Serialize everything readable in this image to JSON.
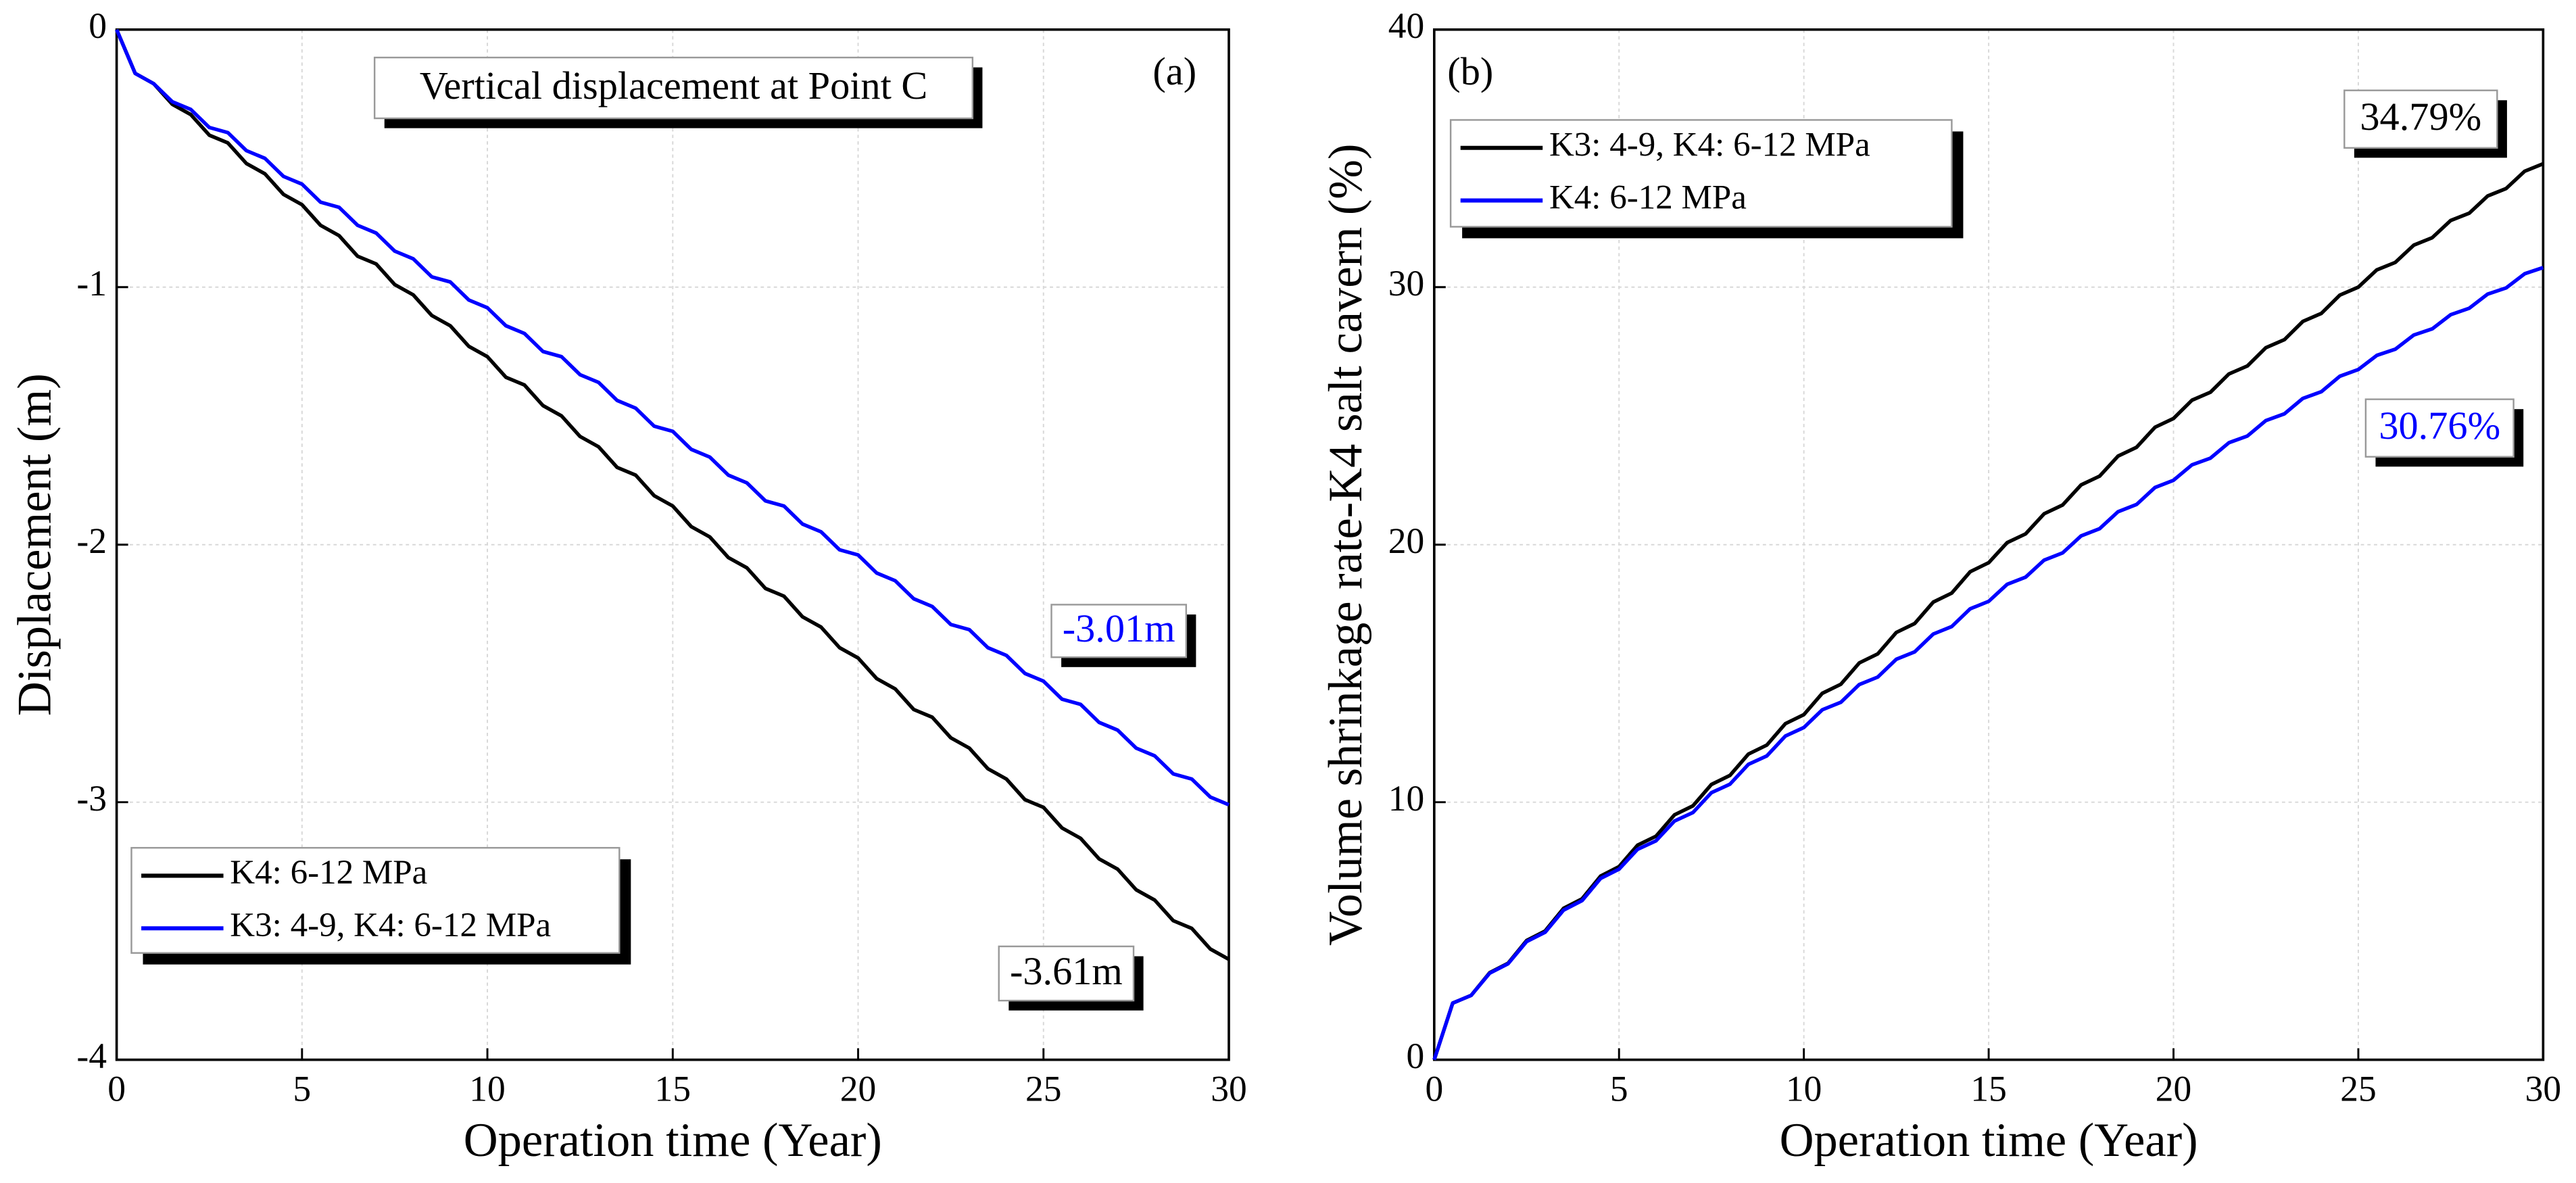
{
  "chart_data": [
    {
      "type": "line",
      "xlabel": "Operation time (Year)",
      "ylabel": "Displacement (m)",
      "x": [
        0,
        0.5,
        1,
        1.5,
        2,
        2.5,
        3,
        3.5,
        4,
        4.5,
        5,
        5.5,
        6,
        6.5,
        7,
        7.5,
        8,
        8.5,
        9,
        9.5,
        10,
        10.5,
        11,
        11.5,
        12,
        12.5,
        13,
        13.5,
        14,
        14.5,
        15,
        15.5,
        16,
        16.5,
        17,
        17.5,
        18,
        18.5,
        19,
        19.5,
        20,
        20.5,
        21,
        21.5,
        22,
        22.5,
        23,
        23.5,
        24,
        24.5,
        25,
        25.5,
        26,
        26.5,
        27,
        27.5,
        28,
        28.5,
        29,
        29.5,
        30
      ],
      "series": [
        {
          "name": "K4: 6-12 MPa",
          "color": "#000000",
          "values": [
            0,
            -0.17,
            -0.21,
            -0.29,
            -0.33,
            -0.41,
            -0.44,
            -0.52,
            -0.56,
            -0.64,
            -0.68,
            -0.76,
            -0.8,
            -0.88,
            -0.91,
            -0.99,
            -1.03,
            -1.11,
            -1.15,
            -1.23,
            -1.27,
            -1.35,
            -1.38,
            -1.46,
            -1.5,
            -1.58,
            -1.62,
            -1.7,
            -1.73,
            -1.81,
            -1.85,
            -1.93,
            -1.97,
            -2.05,
            -2.09,
            -2.17,
            -2.2,
            -2.28,
            -2.32,
            -2.4,
            -2.44,
            -2.52,
            -2.56,
            -2.64,
            -2.67,
            -2.75,
            -2.79,
            -2.87,
            -2.91,
            -2.99,
            -3.02,
            -3.1,
            -3.14,
            -3.22,
            -3.26,
            -3.34,
            -3.38,
            -3.46,
            -3.49,
            -3.57,
            -3.61
          ]
        },
        {
          "name": "K3: 4-9, K4: 6-12 MPa",
          "color": "#0000ff",
          "values": [
            0,
            -0.17,
            -0.21,
            -0.28,
            -0.31,
            -0.38,
            -0.4,
            -0.47,
            -0.5,
            -0.57,
            -0.6,
            -0.67,
            -0.69,
            -0.76,
            -0.79,
            -0.86,
            -0.89,
            -0.96,
            -0.98,
            -1.05,
            -1.08,
            -1.15,
            -1.18,
            -1.25,
            -1.27,
            -1.34,
            -1.37,
            -1.44,
            -1.47,
            -1.54,
            -1.56,
            -1.63,
            -1.66,
            -1.73,
            -1.76,
            -1.83,
            -1.85,
            -1.92,
            -1.95,
            -2.02,
            -2.04,
            -2.11,
            -2.14,
            -2.21,
            -2.24,
            -2.31,
            -2.33,
            -2.4,
            -2.43,
            -2.5,
            -2.53,
            -2.6,
            -2.62,
            -2.69,
            -2.72,
            -2.79,
            -2.82,
            -2.89,
            -2.91,
            -2.98,
            -3.01
          ]
        }
      ],
      "xlim": [
        0,
        30
      ],
      "xticks": [
        0,
        5,
        10,
        15,
        20,
        25,
        30
      ],
      "ylim": [
        -4,
        0
      ],
      "yticks": [
        -4,
        -3,
        -2,
        -1,
        0
      ],
      "grid": true,
      "legend": "lower left",
      "annotations": [
        {
          "text": "Vertical displacement at Point C",
          "color": "#000000"
        },
        {
          "text": "(a)",
          "color": "#000000"
        },
        {
          "text": "-3.01m",
          "color": "#0000ff"
        },
        {
          "text": "-3.61m",
          "color": "#000000"
        }
      ]
    },
    {
      "type": "line",
      "xlabel": "Operation time (Year)",
      "ylabel": "Volume shrinkage rate-K4 salt cavern (%)",
      "x": [
        0,
        0.5,
        1,
        1.5,
        2,
        2.5,
        3,
        3.5,
        4,
        4.5,
        5,
        5.5,
        6,
        6.5,
        7,
        7.5,
        8,
        8.5,
        9,
        9.5,
        10,
        10.5,
        11,
        11.5,
        12,
        12.5,
        13,
        13.5,
        14,
        14.5,
        15,
        15.5,
        16,
        16.5,
        17,
        17.5,
        18,
        18.5,
        19,
        19.5,
        20,
        20.5,
        21,
        21.5,
        22,
        22.5,
        23,
        23.5,
        24,
        24.5,
        25,
        25.5,
        26,
        26.5,
        27,
        27.5,
        28,
        28.5,
        29,
        29.5,
        30
      ],
      "series": [
        {
          "name": "K3: 4-9, K4: 6-12 MPa",
          "color": "#000000",
          "values": [
            0,
            2.2,
            2.5,
            3.38,
            3.75,
            4.63,
            5.0,
            5.88,
            6.25,
            7.13,
            7.5,
            8.33,
            8.68,
            9.51,
            9.86,
            10.69,
            11.04,
            11.87,
            12.22,
            13.05,
            13.4,
            14.23,
            14.58,
            15.41,
            15.76,
            16.59,
            16.94,
            17.77,
            18.12,
            18.95,
            19.3,
            20.08,
            20.42,
            21.2,
            21.54,
            22.32,
            22.66,
            23.44,
            23.78,
            24.56,
            24.9,
            25.61,
            25.92,
            26.63,
            26.94,
            27.65,
            27.96,
            28.67,
            28.98,
            29.69,
            30.0,
            30.67,
            30.96,
            31.63,
            31.92,
            32.59,
            32.87,
            33.54,
            33.83,
            34.5,
            34.79
          ]
        },
        {
          "name": "K4: 6-12 MPa",
          "color": "#0000ff",
          "values": [
            0,
            2.2,
            2.5,
            3.36,
            3.73,
            4.59,
            4.95,
            5.81,
            6.18,
            7.04,
            7.4,
            8.17,
            8.5,
            9.27,
            9.6,
            10.37,
            10.7,
            11.47,
            11.8,
            12.57,
            12.9,
            13.59,
            13.88,
            14.57,
            14.86,
            15.55,
            15.84,
            16.53,
            16.82,
            17.51,
            17.8,
            18.46,
            18.74,
            19.4,
            19.68,
            20.34,
            20.62,
            21.28,
            21.56,
            22.22,
            22.5,
            23.1,
            23.36,
            23.96,
            24.22,
            24.82,
            25.08,
            25.68,
            25.94,
            26.54,
            26.8,
            27.35,
            27.59,
            28.14,
            28.38,
            28.93,
            29.18,
            29.73,
            29.97,
            30.52,
            30.76
          ]
        }
      ],
      "xlim": [
        0,
        30
      ],
      "xticks": [
        0,
        5,
        10,
        15,
        20,
        25,
        30
      ],
      "ylim": [
        0,
        40
      ],
      "yticks": [
        0,
        10,
        20,
        30,
        40
      ],
      "grid": true,
      "legend": "upper left",
      "annotations": [
        {
          "text": "(b)",
          "color": "#000000"
        },
        {
          "text": "34.79%",
          "color": "#000000"
        },
        {
          "text": "30.76%",
          "color": "#0000ff"
        }
      ]
    }
  ]
}
